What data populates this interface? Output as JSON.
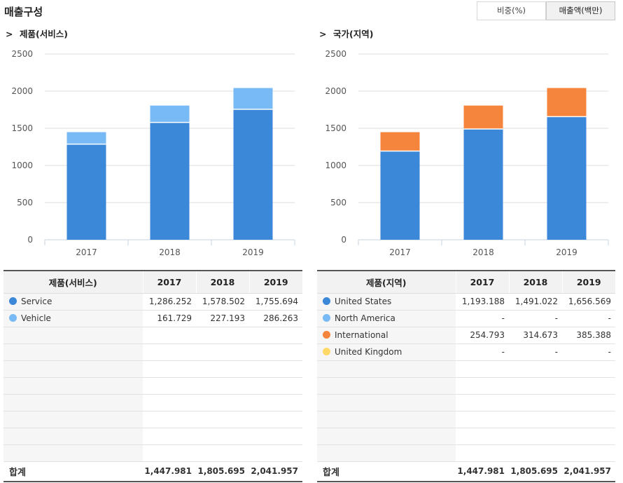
{
  "page": {
    "title": "매출구성",
    "toggle_ratio": "비중(%)",
    "toggle_amount": "매출액(백만)"
  },
  "left": {
    "section_marker": ">",
    "section_title": "제품(서비스)",
    "table_header": "제품(서비스)",
    "years": [
      "2017",
      "2018",
      "2019"
    ],
    "rows": [
      {
        "name": "Service",
        "color": "#3b87d8",
        "values": [
          "1,286.252",
          "1,578.502",
          "1,755.694"
        ]
      },
      {
        "name": "Vehicle",
        "color": "#78baf5",
        "values": [
          "161.729",
          "227.193",
          "286.263"
        ]
      }
    ],
    "total_label": "합계",
    "totals": [
      "1,447.981",
      "1,805.695",
      "2,041.957"
    ]
  },
  "right": {
    "section_marker": ">",
    "section_title": "국가(지역)",
    "table_header": "제품(지역)",
    "years": [
      "2017",
      "2018",
      "2019"
    ],
    "rows": [
      {
        "name": "United States",
        "color": "#3b87d8",
        "values": [
          "1,193.188",
          "1,491.022",
          "1,656.569"
        ]
      },
      {
        "name": "North America",
        "color": "#78baf5",
        "values": [
          "-",
          "-",
          "-"
        ]
      },
      {
        "name": "International",
        "color": "#f5843c",
        "values": [
          "254.793",
          "314.673",
          "385.388"
        ]
      },
      {
        "name": "United Kingdom",
        "color": "#ffd966",
        "values": [
          "-",
          "-",
          "-"
        ]
      }
    ],
    "total_label": "합계",
    "totals": [
      "1,447.981",
      "1,805.695",
      "2,041.957"
    ]
  },
  "chart_data": [
    {
      "type": "bar",
      "stacked": true,
      "title": "제품(서비스)",
      "categories": [
        "2017",
        "2018",
        "2019"
      ],
      "series": [
        {
          "name": "Service",
          "color": "#3b87d8",
          "values": [
            1286.252,
            1578.502,
            1755.694
          ]
        },
        {
          "name": "Vehicle",
          "color": "#78baf5",
          "values": [
            161.729,
            227.193,
            286.263
          ]
        }
      ],
      "ylim": [
        0,
        2500
      ],
      "yticks": [
        0,
        500,
        1000,
        1500,
        2000,
        2500
      ],
      "grid": true
    },
    {
      "type": "bar",
      "stacked": true,
      "title": "국가(지역)",
      "categories": [
        "2017",
        "2018",
        "2019"
      ],
      "series": [
        {
          "name": "United States",
          "color": "#3b87d8",
          "values": [
            1193.188,
            1491.022,
            1656.569
          ]
        },
        {
          "name": "International",
          "color": "#f5843c",
          "values": [
            254.793,
            314.673,
            385.388
          ]
        }
      ],
      "ylim": [
        0,
        2500
      ],
      "yticks": [
        0,
        500,
        1000,
        1500,
        2000,
        2500
      ],
      "grid": true
    }
  ]
}
